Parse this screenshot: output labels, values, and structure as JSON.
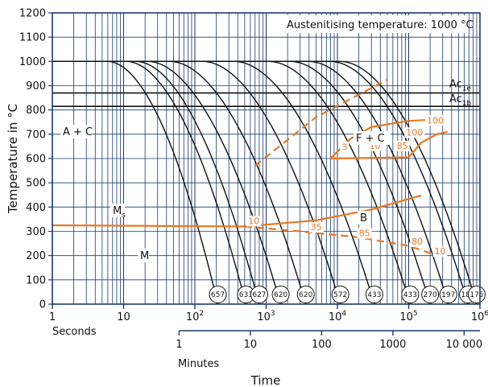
{
  "chart_data": {
    "type": "line",
    "xscale": "log",
    "xlim_seconds": [
      1,
      1000000
    ],
    "ylim": [
      0,
      1200
    ],
    "ylabel": "Temperature in °C",
    "xlabel": "Time",
    "seconds_label": "Seconds",
    "minutes_label": "Minutes",
    "annotation": "Austenitising temperature: 1000 °C",
    "y_ticks": [
      0,
      100,
      200,
      300,
      400,
      500,
      600,
      700,
      800,
      900,
      1000,
      1100,
      1200
    ],
    "x_ticks_seconds": [
      {
        "value": 1,
        "base": "1",
        "exp": ""
      },
      {
        "value": 10,
        "base": "10",
        "exp": ""
      },
      {
        "value": 100,
        "base": "10",
        "exp": "2"
      },
      {
        "value": 1000,
        "base": "10",
        "exp": "3"
      },
      {
        "value": 10000,
        "base": "10",
        "exp": "4"
      },
      {
        "value": 100000,
        "base": "10",
        "exp": "5"
      },
      {
        "value": 1000000,
        "base": "10",
        "exp": "6"
      }
    ],
    "x_ticks_minutes": [
      "1",
      "10",
      "100",
      "1000",
      "10 000"
    ],
    "critical_temperatures": [
      {
        "base": "Ac",
        "sub": "1e",
        "temp": 870
      },
      {
        "base": "Ac",
        "sub": "1b",
        "temp": 815
      }
    ],
    "regions": [
      {
        "text": "A + C"
      },
      {
        "text": "F + C"
      },
      {
        "text": "B"
      },
      {
        "text": "M"
      },
      {
        "base": "M",
        "sub": "s"
      }
    ],
    "cooling_curves": [
      {
        "t_start": 6,
        "t_end": 210,
        "hardness": "657"
      },
      {
        "t_start": 11,
        "t_end": 520,
        "hardness": "633"
      },
      {
        "t_start": 15,
        "t_end": 800,
        "hardness": "627"
      },
      {
        "t_start": 22,
        "t_end": 1600,
        "hardness": "620"
      },
      {
        "t_start": 45,
        "t_end": 3600,
        "hardness": "620"
      },
      {
        "t_start": 130,
        "t_end": 11000,
        "hardness": "572"
      },
      {
        "t_start": 360,
        "t_end": 33000,
        "hardness": "433"
      },
      {
        "t_start": 1100,
        "t_end": 105000,
        "hardness": "433"
      },
      {
        "t_start": 2200,
        "t_end": 200000,
        "hardness": "270"
      },
      {
        "t_start": 4000,
        "t_end": 360000,
        "hardness": "197"
      },
      {
        "t_start": 8000,
        "t_end": 680000,
        "hardness": "183"
      },
      {
        "t_start": 11000,
        "t_end": 900000,
        "hardness": "175"
      }
    ],
    "transformation_lines": [
      {
        "name": "Ms",
        "style": "solid",
        "points": [
          [
            1,
            325
          ],
          [
            500,
            320
          ],
          [
            5000,
            345
          ],
          [
            30000,
            390
          ],
          [
            150000,
            448
          ]
        ]
      },
      {
        "name": "B finish",
        "style": "dashed",
        "points": [
          [
            500,
            320
          ],
          [
            3000,
            300
          ],
          [
            20000,
            275
          ],
          [
            100000,
            240
          ],
          [
            200000,
            210
          ]
        ]
      },
      {
        "name": "Bs-Ac",
        "style": "dashed",
        "points": [
          [
            700,
            570
          ],
          [
            5000,
            770
          ],
          [
            50000,
            925
          ]
        ]
      },
      {
        "name": "F start",
        "style": "solid",
        "points": [
          [
            8000,
            600
          ],
          [
            15000,
            680
          ],
          [
            30000,
            730
          ],
          [
            100000,
            755
          ],
          [
            220000,
            760
          ]
        ]
      },
      {
        "name": "F finish",
        "style": "solid",
        "points": [
          [
            8000,
            600
          ],
          [
            100000,
            605
          ],
          [
            150000,
            665
          ],
          [
            250000,
            700
          ],
          [
            350000,
            710
          ]
        ]
      }
    ],
    "percent_labels": [
      {
        "text": "10",
        "t": 560,
        "temp": 330
      },
      {
        "text": "35",
        "t": 4200,
        "temp": 305
      },
      {
        "text": "85",
        "t": 20000,
        "temp": 280
      },
      {
        "text": "80",
        "t": 110000,
        "temp": 245
      },
      {
        "text": "10",
        "t": 230000,
        "temp": 205
      },
      {
        "text": "3",
        "t": 11500,
        "temp": 635
      },
      {
        "text": "10",
        "t": 28000,
        "temp": 640
      },
      {
        "text": "85",
        "t": 68000,
        "temp": 640
      },
      {
        "text": "100",
        "t": 92000,
        "temp": 695
      },
      {
        "text": "100",
        "t": 180000,
        "temp": 745
      }
    ],
    "colors": {
      "curve": "#111111",
      "transformation": "#e87722",
      "grid": "#1a3a6b",
      "frame": "#1a3a6b"
    }
  }
}
